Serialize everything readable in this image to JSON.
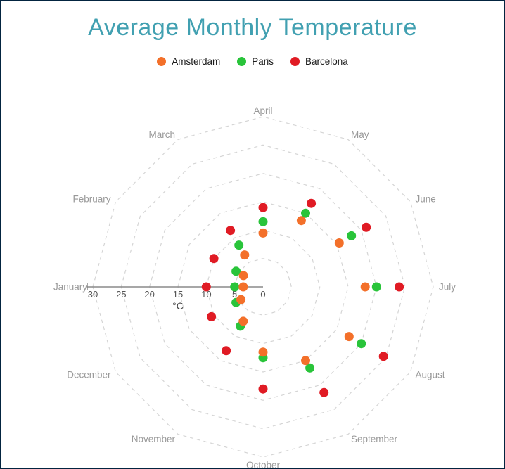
{
  "title": "Average Monthly Temperature",
  "chart_data": {
    "type": "scatter",
    "polar": true,
    "title": "Average Monthly Temperature",
    "categories": [
      "January",
      "February",
      "March",
      "April",
      "May",
      "June",
      "July",
      "August",
      "September",
      "October",
      "November",
      "December"
    ],
    "series": [
      {
        "name": "Amsterdam",
        "color": "#F3702A",
        "values": [
          3.5,
          4,
          6.5,
          9.5,
          13.5,
          15.5,
          18,
          17.5,
          15,
          11.5,
          7,
          4.5
        ]
      },
      {
        "name": "Paris",
        "color": "#29C43A",
        "values": [
          5,
          5.5,
          8.5,
          11.5,
          15,
          18,
          20,
          20,
          16.5,
          12.5,
          8,
          5.5
        ]
      },
      {
        "name": "Barcelona",
        "color": "#E01B24",
        "values": [
          10,
          10,
          11.5,
          14,
          17,
          21,
          24,
          24.5,
          21.5,
          18,
          13,
          10.5
        ]
      }
    ],
    "radial_axis": {
      "unit_label": "°C",
      "tick_labels": [
        "30",
        "25",
        "20",
        "15",
        "10",
        "5",
        "0"
      ],
      "tick_values": [
        30,
        25,
        20,
        15,
        10,
        5,
        0
      ],
      "max": 30,
      "ring_values": [
        5,
        10,
        15,
        20,
        25,
        30
      ]
    },
    "layout_hints": {
      "start_axis": "January at 180 degrees (left), months counterclockwise, April top, July right, October bottom",
      "grid": "dashed concentric 12-sided polygons",
      "legend_position": "top center"
    }
  },
  "styles": {
    "title_color": "#41A0B1",
    "month_label_color": "#999999",
    "tick_label_color": "#555555",
    "grid_color": "#D5D5D5",
    "axis_line_color": "#8A8A8A",
    "legend_text_color": "#1A1A1A",
    "border_color": "#032440",
    "background": "#FFFFFF"
  }
}
